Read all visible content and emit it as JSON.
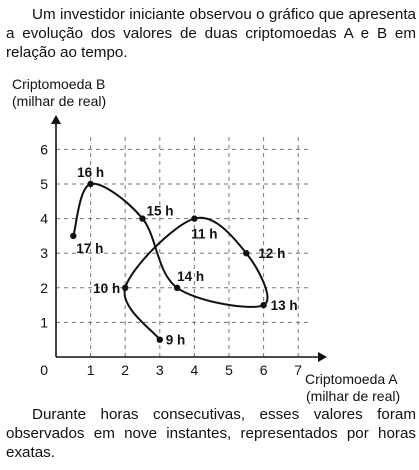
{
  "intro_text": "Um investidor iniciante observou o gráfico que apresenta a evolução dos valores de duas criptomoedas A e B em relação ao tempo.",
  "outro_text": "Durante horas consecutivas, esses valores foram observados em nove instantes, representados por horas exatas.",
  "chart_data": {
    "type": "line",
    "xlabel": "Criptomoeda A (milhar de real)",
    "xlabel_lines": [
      "Criptomoeda A",
      "(milhar de real)"
    ],
    "ylabel": "Criptomoeda B (milhar de real)",
    "ylabel_lines": [
      "Criptomoeda B",
      "(milhar de real)"
    ],
    "xlim": [
      0,
      7
    ],
    "ylim": [
      0,
      6
    ],
    "x_ticks": [
      "1",
      "2",
      "3",
      "4",
      "5",
      "6",
      "7"
    ],
    "y_ticks": [
      "1",
      "2",
      "3",
      "4",
      "5",
      "6"
    ],
    "origin_label": "0",
    "grid": true,
    "grid_style": "dashed",
    "series": [
      {
        "points": [
          {
            "label": "9 h",
            "x": 3.0,
            "y": 0.5
          },
          {
            "label": "10 h",
            "x": 2.0,
            "y": 2.0
          },
          {
            "label": "11 h",
            "x": 4.0,
            "y": 4.0
          },
          {
            "label": "12 h",
            "x": 5.5,
            "y": 3.0
          },
          {
            "label": "13 h",
            "x": 6.0,
            "y": 1.5
          },
          {
            "label": "14 h",
            "x": 3.5,
            "y": 2.0
          },
          {
            "label": "15 h",
            "x": 2.5,
            "y": 4.0
          },
          {
            "label": "16 h",
            "x": 1.0,
            "y": 5.0
          },
          {
            "label": "17 h",
            "x": 0.5,
            "y": 3.5
          }
        ]
      }
    ]
  }
}
